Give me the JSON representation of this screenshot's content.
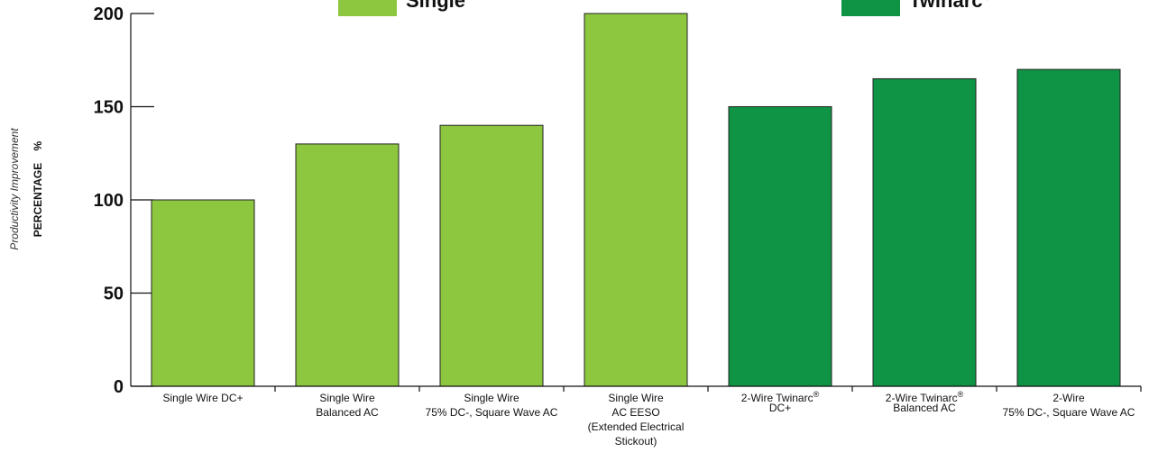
{
  "chart_data": {
    "type": "bar",
    "ylabel_top": "Productivity Improvement",
    "ylabel_bottom": "PERCENTAGE",
    "ylabel_unit": "%",
    "ylim": [
      0,
      200
    ],
    "yticks": [
      0,
      50,
      100,
      150,
      200
    ],
    "grid": false,
    "legend_position": "top",
    "legend": [
      {
        "name": "Single",
        "sup": "",
        "color": "#8dc63f"
      },
      {
        "name": "Twinarc",
        "sup": "®",
        "color": "#0e9444"
      }
    ],
    "categories": [
      {
        "lines": [
          {
            "text": "Single Wire DC+",
            "sup": ""
          }
        ],
        "group": 0
      },
      {
        "lines": [
          {
            "text": "Single Wire",
            "sup": ""
          },
          {
            "text": "Balanced AC",
            "sup": ""
          }
        ],
        "group": 0
      },
      {
        "lines": [
          {
            "text": "Single Wire",
            "sup": ""
          },
          {
            "text": "75% DC-, Square Wave AC",
            "sup": ""
          }
        ],
        "group": 0
      },
      {
        "lines": [
          {
            "text": "Single Wire",
            "sup": ""
          },
          {
            "text": "AC EESO",
            "sup": ""
          },
          {
            "text": "(Extended Electrical",
            "sup": ""
          },
          {
            "text": "Stickout)",
            "sup": ""
          }
        ],
        "group": 0
      },
      {
        "lines": [
          {
            "text": "2-Wire Twinarc",
            "sup": "®"
          },
          {
            "text": "DC+",
            "sup": ""
          }
        ],
        "group": 1
      },
      {
        "lines": [
          {
            "text": "2-Wire Twinarc",
            "sup": "®"
          },
          {
            "text": "Balanced AC",
            "sup": ""
          }
        ],
        "group": 1
      },
      {
        "lines": [
          {
            "text": "2-Wire",
            "sup": ""
          },
          {
            "text": "75% DC-, Square Wave AC",
            "sup": ""
          }
        ],
        "group": 1
      }
    ],
    "values": [
      100,
      130,
      140,
      200,
      150,
      165,
      170
    ]
  }
}
